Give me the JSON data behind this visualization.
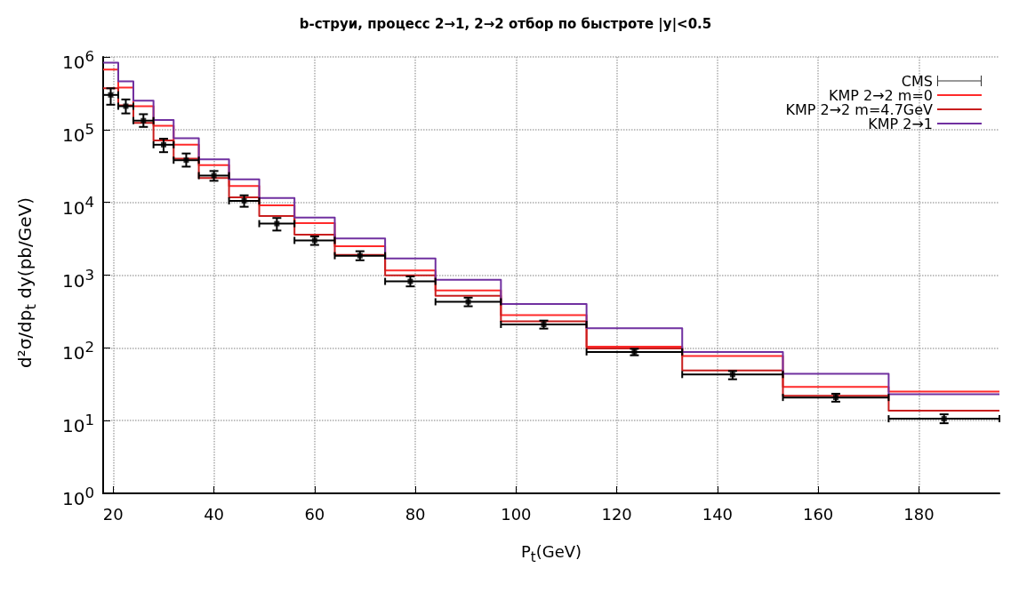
{
  "chart_data": {
    "type": "histogram",
    "title": "b-струи, процесс 2→1, 2→2 отбор по быстроте |y|<0.5",
    "xlabel": "P$_{t}$(GeV)",
    "ylabel": "d²σ/dp$_{t}$ dy(pb/GeV)",
    "bins": [
      18,
      21,
      24,
      28,
      32,
      37,
      43,
      49,
      56,
      64,
      74,
      84,
      97,
      114,
      133,
      153,
      174,
      196
    ],
    "xlim": [
      18,
      196
    ],
    "xticks": [
      20,
      40,
      60,
      80,
      100,
      120,
      140,
      160,
      180
    ],
    "ylim": [
      1,
      1000000
    ],
    "yticks": [
      {
        "value": 1,
        "label": "10$^{0}$"
      },
      {
        "value": 10,
        "label": "10$^{1}$"
      },
      {
        "value": 100,
        "label": "10$^{2}$"
      },
      {
        "value": 1000,
        "label": "10$^{3}$"
      },
      {
        "value": 10000,
        "label": "10$^{4}$"
      },
      {
        "value": 100000,
        "label": "10$^{5}$"
      },
      {
        "value": 1000000,
        "label": "10$^{6}$"
      }
    ],
    "log": "y",
    "grid": true,
    "legend": "top right",
    "series": [
      {
        "name": "CMS",
        "type": "scatter",
        "color": "#000000",
        "x": [
          19.5,
          22.5,
          26,
          30,
          34.5,
          40,
          46,
          52.5,
          60,
          69,
          79,
          90.5,
          105.5,
          123.5,
          143,
          163.5,
          185
        ],
        "values": [
          300000,
          210000,
          133000,
          62000,
          38000,
          23300,
          10500,
          5100,
          3000,
          1850,
          820,
          430,
          210,
          88,
          43,
          20.8,
          10.6
        ],
        "errors": [
          [
            220000,
            370000
          ],
          [
            167000,
            260000
          ],
          [
            109000,
            163000
          ],
          [
            49000,
            75000
          ],
          [
            31000,
            47000
          ],
          [
            19800,
            27000
          ],
          [
            8700,
            12500
          ],
          [
            4100,
            6100
          ],
          [
            2600,
            3400
          ],
          [
            1600,
            2130
          ],
          [
            700,
            960
          ],
          [
            373,
            490
          ],
          [
            184,
            237
          ],
          [
            79,
            97
          ],
          [
            37,
            48
          ],
          [
            18.2,
            23.4
          ],
          [
            9.2,
            12.2
          ]
        ],
        "xerrors": [
          1.5,
          1.5,
          2,
          2,
          2.5,
          3,
          3,
          3.5,
          4,
          5,
          5,
          6.5,
          8.5,
          9.5,
          10,
          10.5,
          11
        ]
      },
      {
        "name": "KMP 2→2 m=0",
        "color": "#ff2a2a",
        "values": [
          670000,
          380000,
          210000,
          113000,
          62000,
          32600,
          16800,
          9100,
          5200,
          2500,
          1160,
          615,
          282,
          104,
          77,
          29,
          25
        ]
      },
      {
        "name": "KMP 2→2 m=4.7GeV",
        "color": "#c81e1e",
        "values": [
          370000,
          216000,
          124000,
          71000,
          40000,
          21600,
          11700,
          6500,
          3600,
          1900,
          990,
          520,
          231,
          98,
          49,
          22,
          13.7
        ]
      },
      {
        "name": "KMP 2→1",
        "color": "#7030a0",
        "values": [
          830000,
          460000,
          250000,
          136000,
          76000,
          39000,
          20700,
          11500,
          6200,
          3200,
          1700,
          860,
          400,
          186,
          88,
          44,
          23
        ]
      }
    ]
  }
}
